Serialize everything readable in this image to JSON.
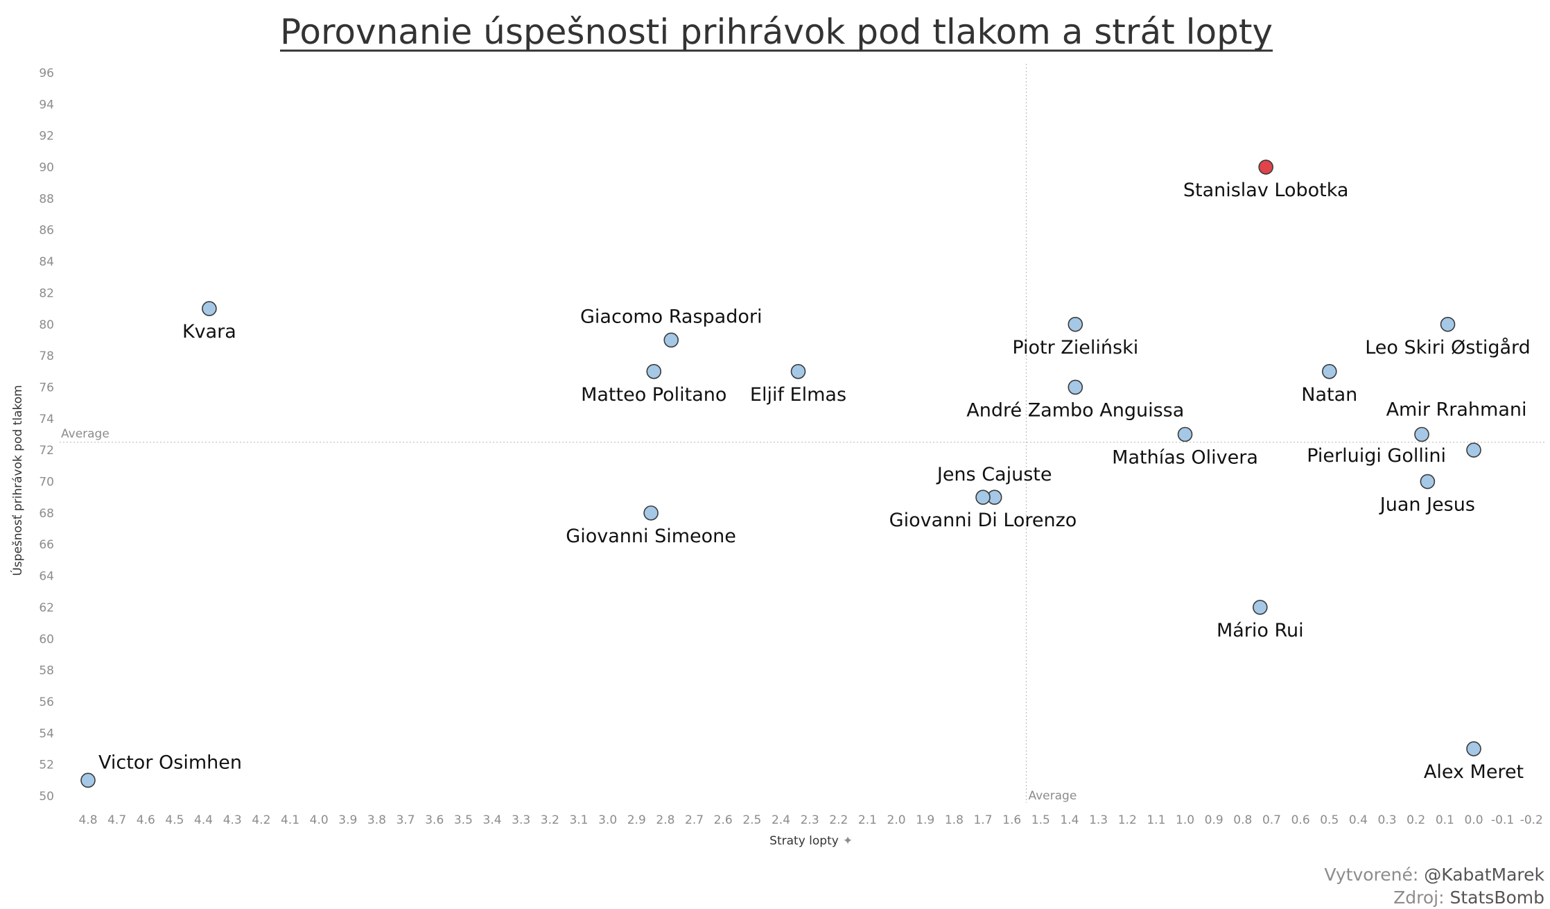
{
  "chart_data": {
    "type": "scatter",
    "title": "Porovnanie úspešnosti prihrávok pod tlakom a strát lopty",
    "xlabel": "Straty lopty",
    "ylabel": "Úspešnosť prihrávok pod tlakom",
    "x_reversed": true,
    "xlim": [
      4.85,
      -0.25
    ],
    "ylim": [
      49.5,
      96.5
    ],
    "x_ticks": [
      4.8,
      4.7,
      4.6,
      4.5,
      4.4,
      4.3,
      4.2,
      4.1,
      4.0,
      3.9,
      3.8,
      3.7,
      3.6,
      3.5,
      3.4,
      3.3,
      3.2,
      3.1,
      3.0,
      2.9,
      2.8,
      2.7,
      2.6,
      2.5,
      2.4,
      2.3,
      2.2,
      2.1,
      2.0,
      1.9,
      1.8,
      1.7,
      1.6,
      1.5,
      1.4,
      1.3,
      1.2,
      1.1,
      1.0,
      0.9,
      0.8,
      0.7,
      0.6,
      0.5,
      0.4,
      0.3,
      0.2,
      0.1,
      0.0,
      -0.1,
      -0.2
    ],
    "y_ticks": [
      50,
      52,
      54,
      56,
      58,
      60,
      62,
      64,
      66,
      68,
      70,
      72,
      74,
      76,
      78,
      80,
      82,
      84,
      86,
      88,
      90,
      92,
      94,
      96
    ],
    "grid": false,
    "average_label": "Average",
    "average_x": 1.55,
    "average_y": 72.5,
    "highlight_color": "#e0434a",
    "point_color": "#a5c8e6",
    "points": [
      {
        "name": "Stanislav Lobotka",
        "x": 0.72,
        "y": 90,
        "highlight": true,
        "label_pos": "below"
      },
      {
        "name": "Kvara",
        "x": 4.38,
        "y": 81,
        "label_pos": "below"
      },
      {
        "name": "Giacomo Raspadori",
        "x": 2.78,
        "y": 79,
        "label_pos": "above"
      },
      {
        "name": "Matteo Politano",
        "x": 2.84,
        "y": 77,
        "label_pos": "below"
      },
      {
        "name": "Eljif Elmas",
        "x": 2.34,
        "y": 77,
        "label_pos": "below"
      },
      {
        "name": "Piotr Zieliński",
        "x": 1.38,
        "y": 80,
        "label_pos": "below"
      },
      {
        "name": "André Zambo Anguissa",
        "x": 1.38,
        "y": 76,
        "label_pos": "below"
      },
      {
        "name": "Leo Skiri Østigård",
        "x": 0.09,
        "y": 80,
        "label_pos": "below"
      },
      {
        "name": "Natan",
        "x": 0.5,
        "y": 77,
        "label_pos": "below"
      },
      {
        "name": "Amir Rrahmani",
        "x": 0.18,
        "y": 73,
        "label_pos": "above-right"
      },
      {
        "name": "Pierluigi Gollini",
        "x": 0.0,
        "y": 72,
        "label_pos": "left"
      },
      {
        "name": "Mathías Olivera",
        "x": 1.0,
        "y": 73,
        "label_pos": "below"
      },
      {
        "name": "Jens Cajuste",
        "x": 1.66,
        "y": 69,
        "label_pos": "above"
      },
      {
        "name": "Giovanni Di Lorenzo",
        "x": 1.7,
        "y": 69,
        "label_pos": "below"
      },
      {
        "name": "Juan Jesus",
        "x": 0.16,
        "y": 70,
        "label_pos": "below"
      },
      {
        "name": "Giovanni Simeone",
        "x": 2.85,
        "y": 68,
        "label_pos": "below"
      },
      {
        "name": "Mário Rui",
        "x": 0.74,
        "y": 62,
        "label_pos": "below"
      },
      {
        "name": "Alex Meret",
        "x": 0.0,
        "y": 53,
        "label_pos": "below"
      },
      {
        "name": "Victor Osimhen",
        "x": 4.8,
        "y": 51,
        "label_pos": "above-right"
      }
    ]
  },
  "credits": {
    "created_prefix": "Vytvorené: ",
    "created_handle": "@KabatMarek",
    "source_prefix": "Zdroj: ",
    "source_name": "StatsBomb"
  }
}
